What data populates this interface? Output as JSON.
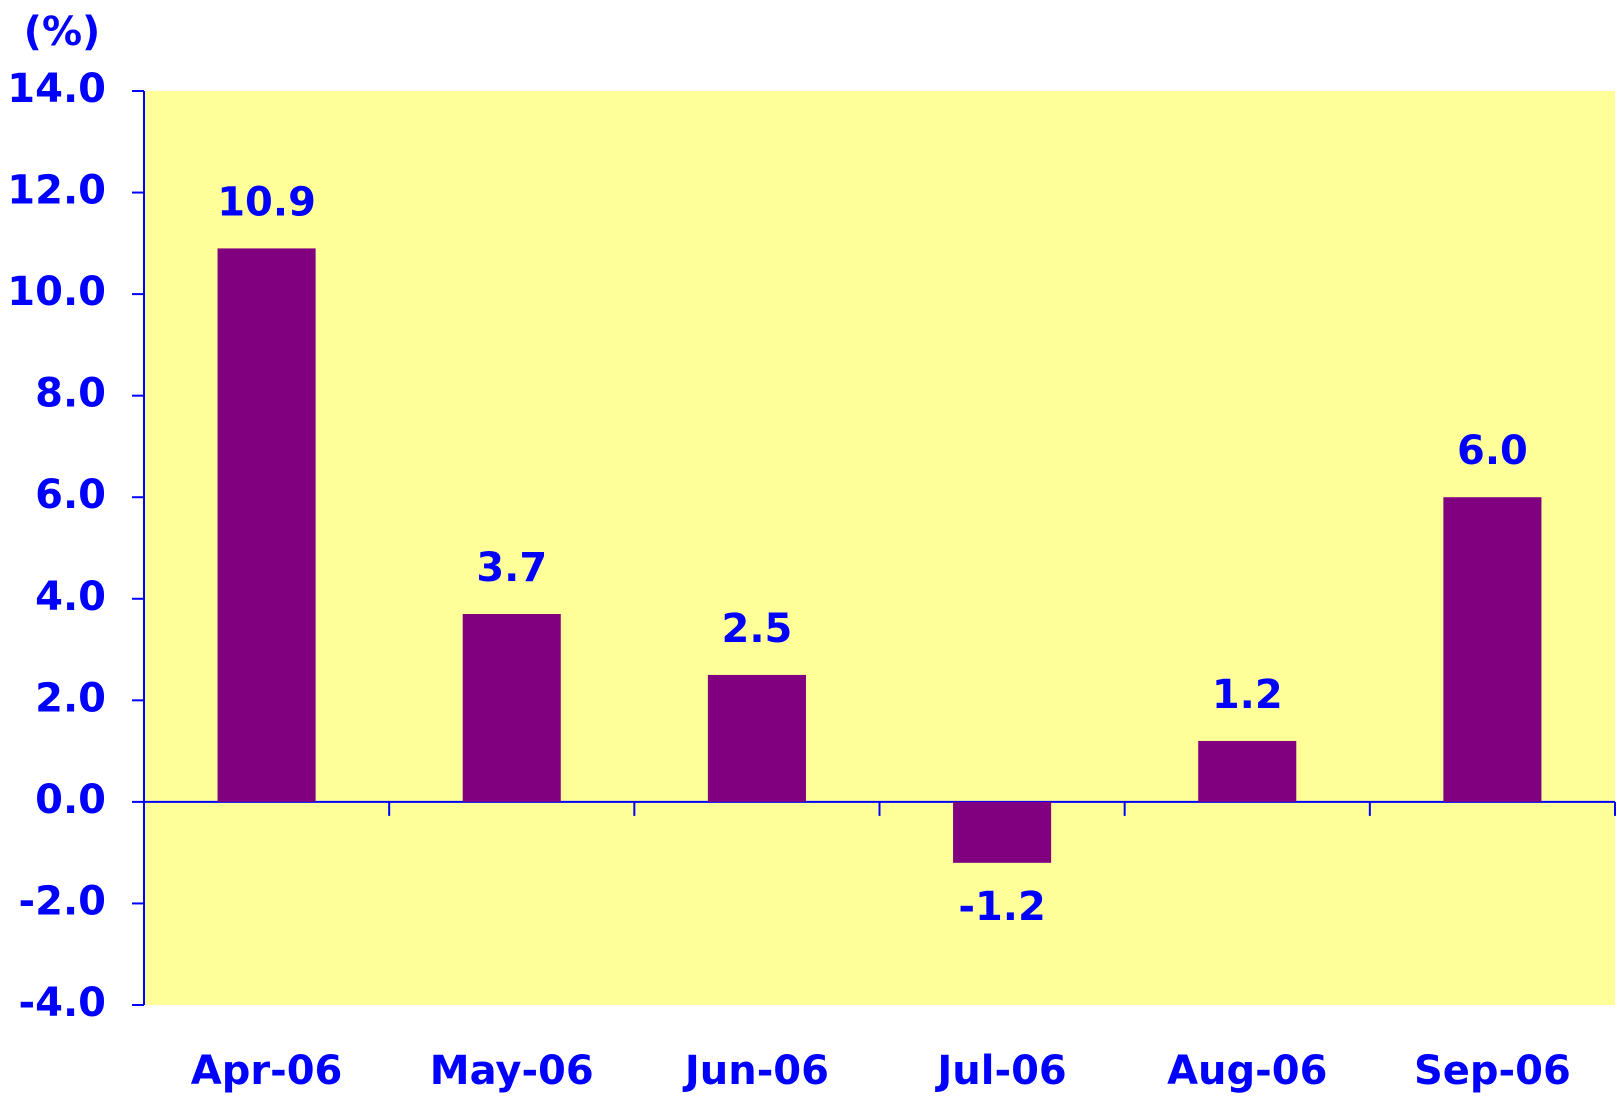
{
  "chart_data": {
    "type": "bar",
    "title": "(%)",
    "categories": [
      "Apr-06",
      "May-06",
      "Jun-06",
      "Jul-06",
      "Aug-06",
      "Sep-06"
    ],
    "values": [
      10.9,
      3.7,
      2.5,
      -1.2,
      1.2,
      6.0
    ],
    "value_labels": [
      "10.9",
      "3.7",
      "2.5",
      "-1.2",
      "1.2",
      "6.0"
    ],
    "color": "#800080",
    "background": "#ffff99",
    "ylim": [
      -4,
      14
    ],
    "yticks": [
      {
        "value": -4,
        "label": "-4.0"
      },
      {
        "value": -2,
        "label": "-2.0"
      },
      {
        "value": 0,
        "label": "0.0"
      },
      {
        "value": 2,
        "label": "2.0"
      },
      {
        "value": 4,
        "label": "4.0"
      },
      {
        "value": 6,
        "label": "6.0"
      },
      {
        "value": 8,
        "label": "8.0"
      },
      {
        "value": 10,
        "label": "10.0"
      },
      {
        "value": 12,
        "label": "12.0"
      },
      {
        "value": 14,
        "label": "14.0"
      }
    ],
    "grid": false
  }
}
